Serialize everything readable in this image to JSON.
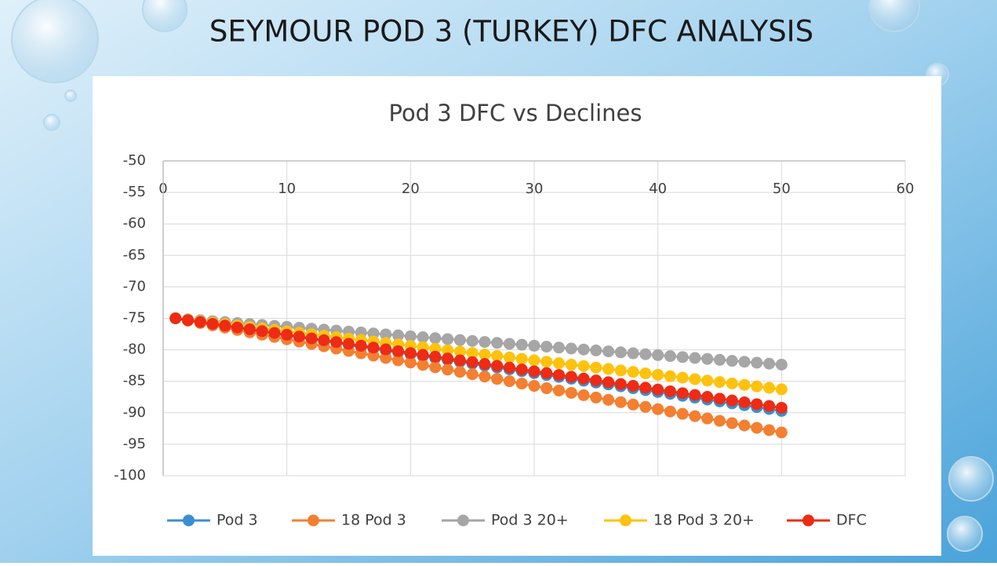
{
  "slide": {
    "title": "SEYMOUR POD 3 (TURKEY) DFC ANALYSIS"
  },
  "chart_data": {
    "type": "line",
    "title": "Pod 3 DFC vs Declines",
    "x": [
      1,
      2,
      3,
      4,
      5,
      6,
      7,
      8,
      9,
      10,
      11,
      12,
      13,
      14,
      15,
      16,
      17,
      18,
      19,
      20,
      21,
      22,
      23,
      24,
      25,
      26,
      27,
      28,
      29,
      30,
      31,
      32,
      33,
      34,
      35,
      36,
      37,
      38,
      39,
      40,
      41,
      42,
      43,
      44,
      45,
      46,
      47,
      48,
      49,
      50
    ],
    "xlim": [
      0,
      60
    ],
    "xticks": [
      0,
      10,
      20,
      30,
      40,
      50,
      60
    ],
    "ylim": [
      -100,
      -50
    ],
    "yticks": [
      -100,
      -95,
      -90,
      -85,
      -80,
      -75,
      -70,
      -65,
      -60,
      -55,
      -50
    ],
    "grid": true,
    "legend": "bottom",
    "series": [
      {
        "name": "Pod 3",
        "color": "#3a8fd0",
        "values": [
          -75,
          -75.3,
          -75.6,
          -75.9,
          -76.2,
          -76.5,
          -76.8,
          -77.1,
          -77.4,
          -77.7,
          -78,
          -78.3,
          -78.6,
          -78.9,
          -79.2,
          -79.5,
          -79.8,
          -80.1,
          -80.4,
          -80.7,
          -81,
          -81.3,
          -81.6,
          -81.9,
          -82.2,
          -82.5,
          -82.8,
          -83.1,
          -83.4,
          -83.7,
          -84,
          -84.3,
          -84.6,
          -84.9,
          -85.2,
          -85.5,
          -85.8,
          -86.1,
          -86.4,
          -86.7,
          -87,
          -87.3,
          -87.6,
          -87.9,
          -88.2,
          -88.5,
          -88.8,
          -89.1,
          -89.4,
          -89.7
        ]
      },
      {
        "name": "18 Pod 3",
        "color": "#f47f30",
        "values": [
          -75,
          -75.37,
          -75.74,
          -76.11,
          -76.48,
          -76.85,
          -77.22,
          -77.59,
          -77.96,
          -78.33,
          -78.7,
          -79.07,
          -79.44,
          -79.81,
          -80.18,
          -80.55,
          -80.92,
          -81.29,
          -81.66,
          -82.03,
          -82.4,
          -82.77,
          -83.14,
          -83.51,
          -83.88,
          -84.25,
          -84.62,
          -84.99,
          -85.36,
          -85.73,
          -86.1,
          -86.47,
          -86.84,
          -87.21,
          -87.58,
          -87.95,
          -88.32,
          -88.69,
          -89.06,
          -89.43,
          -89.8,
          -90.17,
          -90.54,
          -90.91,
          -91.28,
          -91.65,
          -92.02,
          -92.39,
          -92.76,
          -93.13
        ]
      },
      {
        "name": "Pod 3 20+",
        "color": "#a6a6a6",
        "values": [
          -75,
          -75.15,
          -75.3,
          -75.45,
          -75.6,
          -75.75,
          -75.9,
          -76.05,
          -76.2,
          -76.35,
          -76.5,
          -76.65,
          -76.8,
          -76.95,
          -77.1,
          -77.25,
          -77.4,
          -77.55,
          -77.7,
          -77.85,
          -78,
          -78.15,
          -78.3,
          -78.45,
          -78.6,
          -78.75,
          -78.9,
          -79.05,
          -79.2,
          -79.35,
          -79.5,
          -79.65,
          -79.8,
          -79.95,
          -80.1,
          -80.25,
          -80.4,
          -80.55,
          -80.7,
          -80.85,
          -81,
          -81.15,
          -81.3,
          -81.45,
          -81.6,
          -81.75,
          -81.9,
          -82.05,
          -82.2,
          -82.35
        ]
      },
      {
        "name": "18 Pod 3 20+",
        "color": "#ffc20e",
        "values": [
          -75,
          -75.23,
          -75.46,
          -75.69,
          -75.92,
          -76.15,
          -76.38,
          -76.61,
          -76.84,
          -77.07,
          -77.3,
          -77.53,
          -77.76,
          -77.99,
          -78.22,
          -78.45,
          -78.68,
          -78.91,
          -79.14,
          -79.37,
          -79.6,
          -79.83,
          -80.06,
          -80.29,
          -80.52,
          -80.75,
          -80.98,
          -81.21,
          -81.44,
          -81.67,
          -81.9,
          -82.13,
          -82.36,
          -82.59,
          -82.82,
          -83.05,
          -83.28,
          -83.51,
          -83.74,
          -83.97,
          -84.2,
          -84.43,
          -84.66,
          -84.89,
          -85.12,
          -85.35,
          -85.58,
          -85.81,
          -86.04,
          -86.27
        ]
      },
      {
        "name": "DFC",
        "color": "#ee2b14",
        "values": [
          -75,
          -75.29,
          -75.58,
          -75.87,
          -76.16,
          -76.45,
          -76.74,
          -77.03,
          -77.32,
          -77.61,
          -77.9,
          -78.19,
          -78.48,
          -78.77,
          -79.06,
          -79.35,
          -79.64,
          -79.93,
          -80.22,
          -80.51,
          -80.8,
          -81.09,
          -81.38,
          -81.67,
          -81.96,
          -82.25,
          -82.54,
          -82.83,
          -83.12,
          -83.41,
          -83.7,
          -83.99,
          -84.28,
          -84.57,
          -84.86,
          -85.15,
          -85.44,
          -85.73,
          -86.02,
          -86.31,
          -86.6,
          -86.89,
          -87.18,
          -87.47,
          -87.76,
          -88.05,
          -88.34,
          -88.63,
          -88.92,
          -89.21
        ]
      }
    ]
  }
}
